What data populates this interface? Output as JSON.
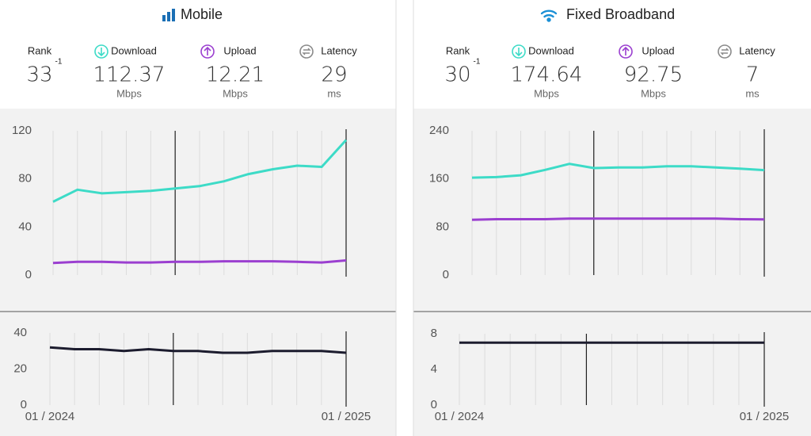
{
  "panels": [
    {
      "title": "Mobile",
      "rank": {
        "label": "Rank",
        "value": 33,
        "change": -1
      },
      "stats": [
        {
          "label": "Download",
          "value": 112.37,
          "unit": "Mbps"
        },
        {
          "label": "Upload",
          "value": 12.21,
          "unit": "Mbps"
        },
        {
          "label": "Latency",
          "value": 29,
          "unit": "ms"
        }
      ]
    },
    {
      "title": "Fixed Broadband",
      "rank": {
        "label": "Rank",
        "value": 30,
        "change": -1
      },
      "stats": [
        {
          "label": "Download",
          "value": 174.64,
          "unit": "Mbps"
        },
        {
          "label": "Upload",
          "value": 92.75,
          "unit": "Mbps"
        },
        {
          "label": "Latency",
          "value": 7,
          "unit": "ms"
        }
      ]
    }
  ],
  "chart_data": [
    {
      "type": "line",
      "categories": [
        null,
        null,
        null,
        null,
        null,
        null,
        null,
        null,
        null,
        null,
        null,
        null,
        null
      ],
      "series": [
        {
          "name": "Download",
          "color": "#3ddbc7",
          "values": [
            61,
            71,
            68,
            69,
            70,
            72,
            74,
            78,
            84,
            88,
            91,
            90,
            112.37
          ]
        },
        {
          "name": "Upload",
          "color": "#9b3fd0",
          "values": [
            10,
            11,
            11,
            10.5,
            10.5,
            11,
            11,
            11.5,
            11.5,
            11.5,
            11,
            10.5,
            12.21
          ]
        }
      ],
      "ylim": [
        0,
        120
      ],
      "yticks": [
        0,
        40,
        80,
        120
      ],
      "grid": true
    },
    {
      "type": "line",
      "categories": [
        "01 / 2024",
        null,
        null,
        null,
        null,
        null,
        null,
        null,
        null,
        null,
        null,
        null,
        "01 / 2025"
      ],
      "series": [
        {
          "name": "Latency",
          "color": "#1c1c2e",
          "values": [
            32,
            31,
            31,
            30,
            31,
            30,
            30,
            29,
            29,
            30,
            30,
            30,
            29
          ]
        }
      ],
      "ylim": [
        0,
        40
      ],
      "yticks": [
        0,
        20,
        40
      ],
      "grid": true
    },
    {
      "type": "line",
      "categories": [
        null,
        null,
        null,
        null,
        null,
        null,
        null,
        null,
        null,
        null,
        null,
        null,
        null
      ],
      "series": [
        {
          "name": "Download",
          "color": "#3ddbc7",
          "values": [
            162,
            163,
            166,
            175,
            185,
            178,
            179,
            179,
            181,
            181,
            179,
            177,
            174.64
          ]
        },
        {
          "name": "Upload",
          "color": "#9b3fd0",
          "values": [
            92,
            93,
            93,
            93,
            94,
            94,
            94,
            94,
            94,
            94,
            94,
            93,
            92.75
          ]
        }
      ],
      "ylim": [
        0,
        240
      ],
      "yticks": [
        0,
        80,
        160,
        240
      ],
      "grid": true
    },
    {
      "type": "line",
      "categories": [
        "01 / 2024",
        null,
        null,
        null,
        null,
        null,
        null,
        null,
        null,
        null,
        null,
        null,
        "01 / 2025"
      ],
      "series": [
        {
          "name": "Latency",
          "color": "#1c1c2e",
          "values": [
            7,
            7,
            7,
            7,
            7,
            7,
            7,
            7,
            7,
            7,
            7,
            7,
            7
          ]
        }
      ],
      "ylim": [
        0,
        8
      ],
      "yticks": [
        0,
        4,
        8
      ],
      "grid": true
    }
  ]
}
